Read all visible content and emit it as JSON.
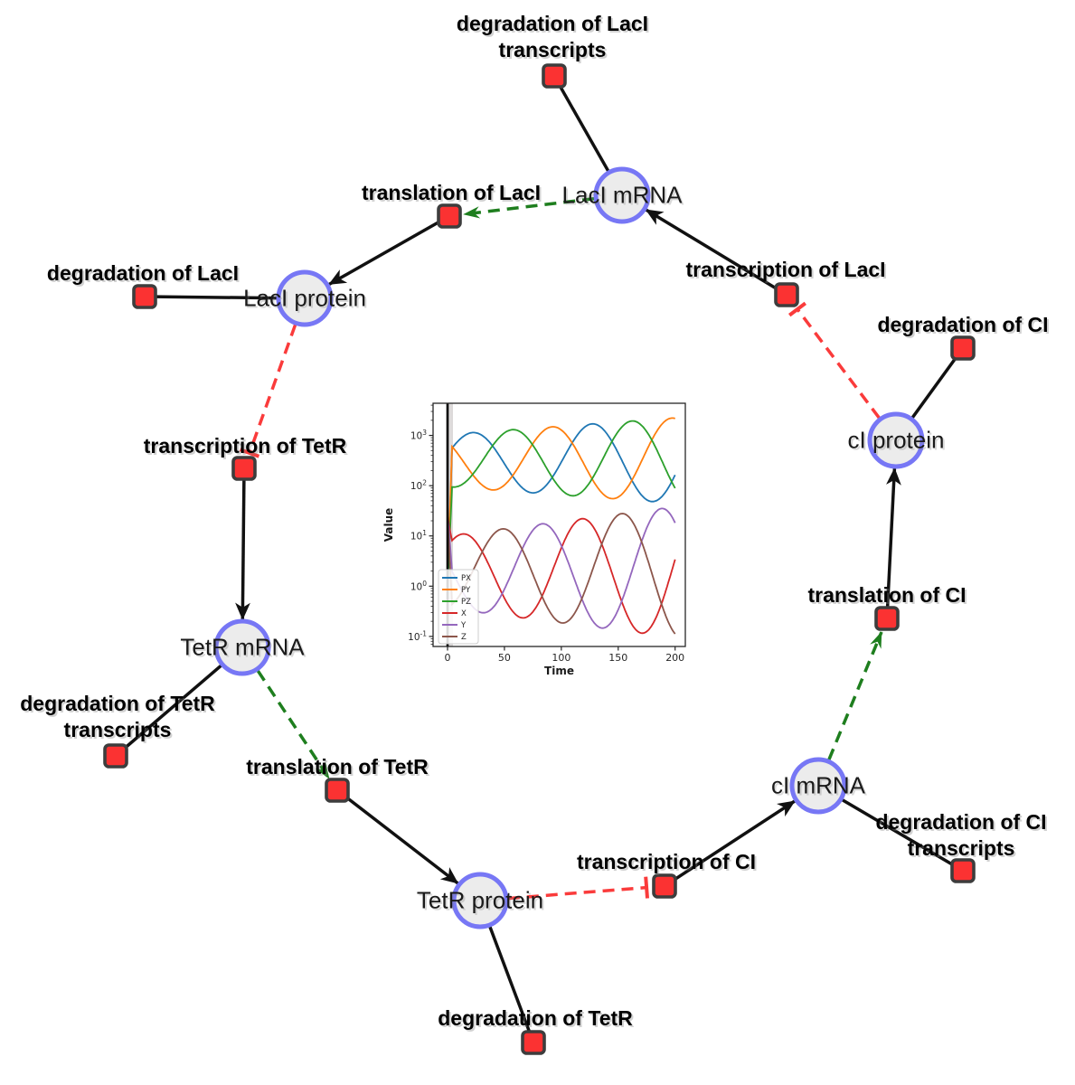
{
  "colors": {
    "species_fill": "#ececec",
    "species_border": "#7777f5",
    "reaction_fill": "#fb3232",
    "reaction_border": "#3d3d3d",
    "edge_black": "#111111",
    "catalysis_green": "#1e7e1e",
    "inhibition_red": "#fa3b3b"
  },
  "diagram": {
    "species": [
      {
        "id": "laci-mrna",
        "label": "LacI mRNA"
      },
      {
        "id": "laci-protein",
        "label": "LacI protein"
      },
      {
        "id": "tetr-mrna",
        "label": "TetR mRNA"
      },
      {
        "id": "tetr-protein",
        "label": "TetR protein"
      },
      {
        "id": "ci-mrna",
        "label": "cI mRNA"
      },
      {
        "id": "ci-protein",
        "label": "cI protein"
      }
    ],
    "reactions": [
      {
        "id": "deg-laci-transcripts",
        "label_lines": [
          "degradation of LacI",
          "transcripts"
        ]
      },
      {
        "id": "translation-laci",
        "label_lines": [
          "translation of LacI"
        ]
      },
      {
        "id": "transcription-laci",
        "label_lines": [
          "transcription of LacI"
        ]
      },
      {
        "id": "deg-laci",
        "label_lines": [
          "degradation of LacI"
        ]
      },
      {
        "id": "transcription-tetr",
        "label_lines": [
          "transcription of TetR"
        ]
      },
      {
        "id": "deg-ci",
        "label_lines": [
          "degradation of CI"
        ]
      },
      {
        "id": "translation-ci",
        "label_lines": [
          "translation of CI"
        ]
      },
      {
        "id": "deg-tetr-transcripts",
        "label_lines": [
          "degradation of TetR",
          "transcripts"
        ]
      },
      {
        "id": "translation-tetr",
        "label_lines": [
          "translation of TetR"
        ]
      },
      {
        "id": "transcription-ci",
        "label_lines": [
          "transcription of CI"
        ]
      },
      {
        "id": "deg-ci-transcripts",
        "label_lines": [
          "degradation of CI",
          "transcripts"
        ]
      },
      {
        "id": "deg-tetr",
        "label_lines": [
          "degradation of TetR"
        ]
      }
    ],
    "edges": [
      {
        "from": "laci-mrna",
        "to": "deg-laci-transcripts",
        "type": "consumption"
      },
      {
        "from": "laci-protein",
        "to": "deg-laci",
        "type": "consumption"
      },
      {
        "from": "tetr-mrna",
        "to": "deg-tetr-transcripts",
        "type": "consumption"
      },
      {
        "from": "tetr-protein",
        "to": "deg-tetr",
        "type": "consumption"
      },
      {
        "from": "ci-mrna",
        "to": "deg-ci-transcripts",
        "type": "consumption"
      },
      {
        "from": "ci-protein",
        "to": "deg-ci",
        "type": "consumption"
      },
      {
        "from": "transcription-laci",
        "to": "laci-mrna",
        "type": "production"
      },
      {
        "from": "translation-laci",
        "to": "laci-protein",
        "type": "production"
      },
      {
        "from": "transcription-tetr",
        "to": "tetr-mrna",
        "type": "production"
      },
      {
        "from": "translation-tetr",
        "to": "tetr-protein",
        "type": "production"
      },
      {
        "from": "transcription-ci",
        "to": "ci-mrna",
        "type": "production"
      },
      {
        "from": "translation-ci",
        "to": "ci-protein",
        "type": "production"
      },
      {
        "from": "laci-mrna",
        "to": "translation-laci",
        "type": "catalysis"
      },
      {
        "from": "tetr-mrna",
        "to": "translation-tetr",
        "type": "catalysis"
      },
      {
        "from": "ci-mrna",
        "to": "translation-ci",
        "type": "catalysis"
      },
      {
        "from": "laci-protein",
        "to": "transcription-tetr",
        "type": "inhibition"
      },
      {
        "from": "tetr-protein",
        "to": "transcription-ci",
        "type": "inhibition"
      },
      {
        "from": "ci-protein",
        "to": "transcription-laci",
        "type": "inhibition"
      }
    ]
  },
  "chart_data": {
    "type": "line",
    "title": "",
    "xlabel": "Time",
    "ylabel": "Value",
    "x_range": [
      0,
      200
    ],
    "x_ticks": [
      0,
      50,
      100,
      150,
      200
    ],
    "y_scale": "log",
    "y_log10_range": [
      -1.2,
      3.64
    ],
    "y_tick_exponents": [
      3,
      2,
      1,
      0,
      -1
    ],
    "grid": false,
    "legend_position": "lower left",
    "vline_x": 0,
    "series": [
      {
        "name": "PX",
        "color": "#1f77b4",
        "center_log10": 2.5,
        "amplitude_log10_start": 0.52,
        "amplitude_log10_end": 0.85,
        "period": 105,
        "peak_time": 22,
        "initial_log10": 0.0
      },
      {
        "name": "PY",
        "color": "#ff7f0e",
        "center_log10": 2.5,
        "amplitude_log10_start": 0.52,
        "amplitude_log10_end": 0.85,
        "period": 105,
        "peak_time": 92,
        "initial_log10": 0.0
      },
      {
        "name": "PZ",
        "color": "#2ca02c",
        "center_log10": 2.5,
        "amplitude_log10_start": 0.52,
        "amplitude_log10_end": 0.85,
        "period": 105,
        "peak_time": 57,
        "initial_log10": 0.0
      },
      {
        "name": "X",
        "color": "#d62728",
        "center_log10": 0.28,
        "amplitude_log10_start": 0.72,
        "amplitude_log10_end": 1.3,
        "period": 105,
        "peak_time": 13,
        "initial_log10": 1.4
      },
      {
        "name": "Y",
        "color": "#9467bd",
        "center_log10": 0.28,
        "amplitude_log10_start": 0.72,
        "amplitude_log10_end": 1.3,
        "period": 105,
        "peak_time": 83,
        "initial_log10": 1.4
      },
      {
        "name": "Z",
        "color": "#8c564b",
        "center_log10": 0.28,
        "amplitude_log10_start": 0.72,
        "amplitude_log10_end": 1.3,
        "period": 105,
        "peak_time": 48,
        "initial_log10": 1.4
      }
    ]
  }
}
